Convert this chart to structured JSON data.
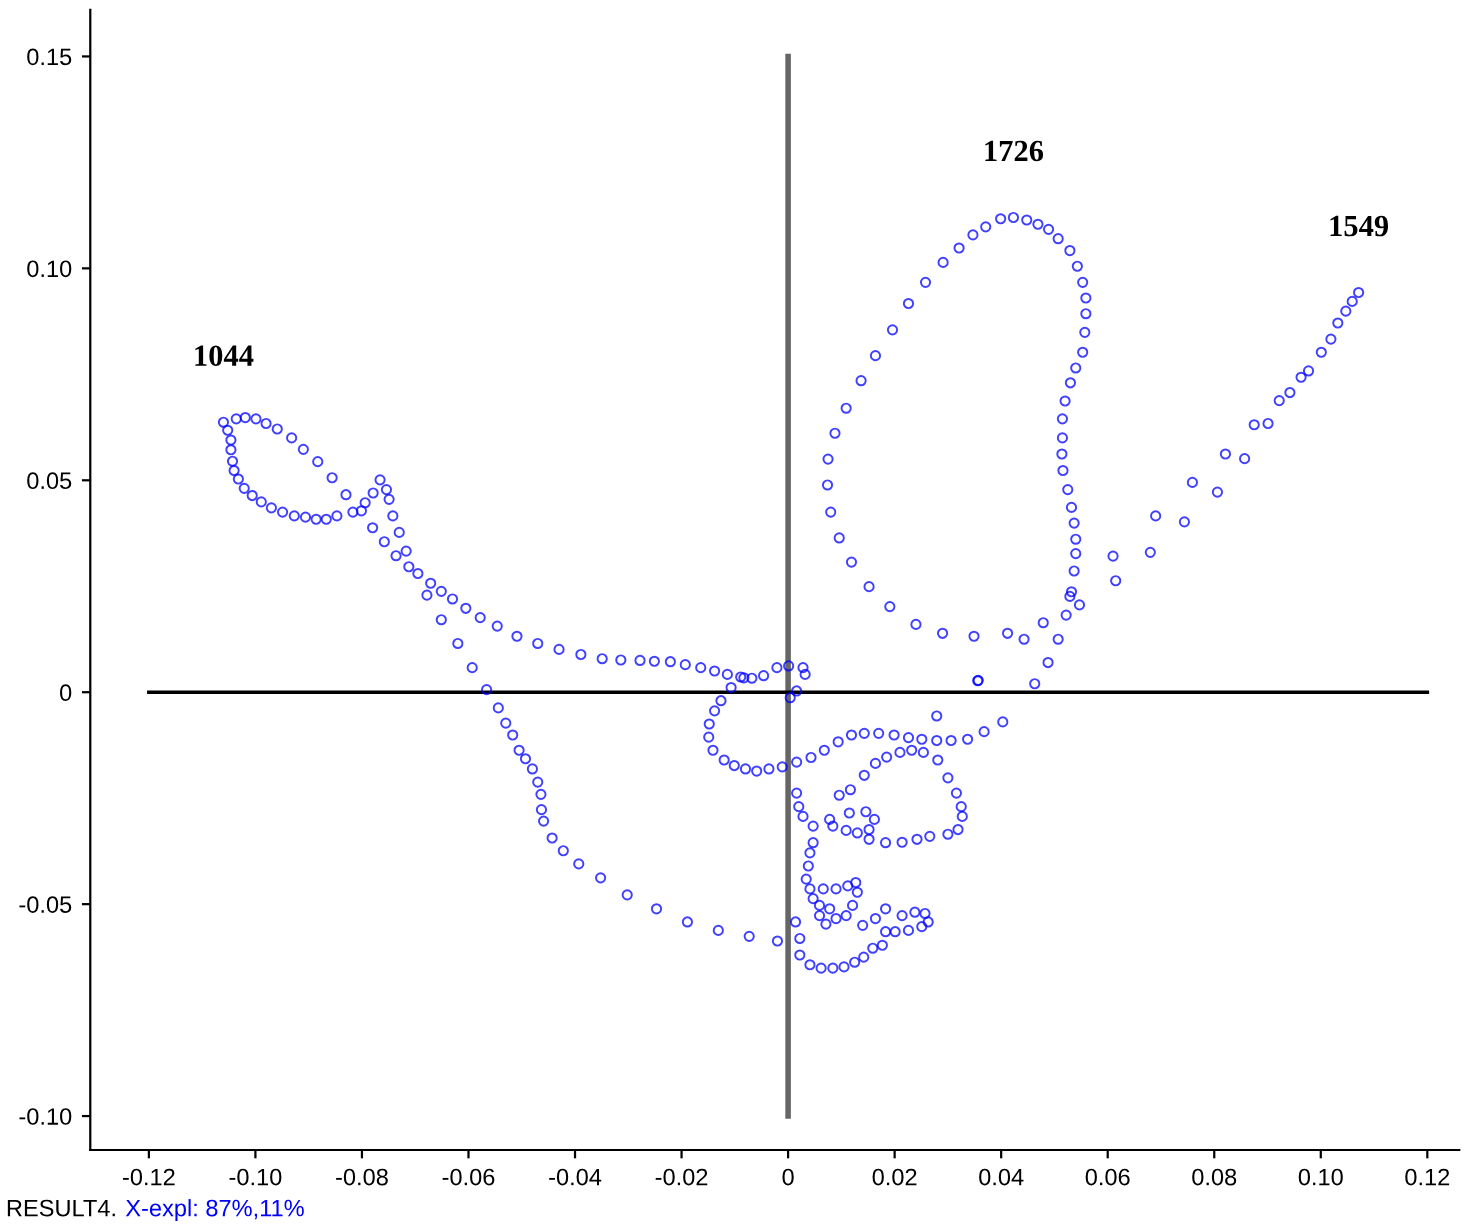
{
  "chart_data": {
    "type": "scatter",
    "marker": "circle",
    "grid": false,
    "legend": false,
    "xlim": [
      -0.131,
      0.126
    ],
    "ylim": [
      -0.108,
      0.161
    ],
    "xticks": [
      {
        "value": -0.12,
        "label": "-0.12"
      },
      {
        "value": -0.1,
        "label": "-0.10"
      },
      {
        "value": -0.08,
        "label": "-0.08"
      },
      {
        "value": -0.06,
        "label": "-0.06"
      },
      {
        "value": -0.04,
        "label": "-0.04"
      },
      {
        "value": -0.02,
        "label": "-0.02"
      },
      {
        "value": 0,
        "label": "0"
      },
      {
        "value": 0.02,
        "label": "0.02"
      },
      {
        "value": 0.04,
        "label": "0.04"
      },
      {
        "value": 0.06,
        "label": "0.06"
      },
      {
        "value": 0.08,
        "label": "0.08"
      },
      {
        "value": 0.1,
        "label": "0.10"
      },
      {
        "value": 0.12,
        "label": "0.12"
      }
    ],
    "yticks": [
      {
        "value": -0.1,
        "label": "-0.10"
      },
      {
        "value": -0.05,
        "label": "-0.05"
      },
      {
        "value": 0,
        "label": "0"
      },
      {
        "value": 0.05,
        "label": "0.05"
      },
      {
        "value": 0.1,
        "label": "0.10"
      },
      {
        "value": 0.15,
        "label": "0.15"
      }
    ],
    "ref_lines": [
      {
        "axis": "x",
        "value": 0,
        "color": "#666666"
      },
      {
        "axis": "y",
        "value": 0,
        "color": "#000000"
      }
    ],
    "annotations": [
      {
        "text": "1044",
        "x": -0.106,
        "y": 0.0637
      },
      {
        "text": "1726",
        "x": 0.0423,
        "y": 0.112
      },
      {
        "text": "1549",
        "x": 0.1071,
        "y": 0.0943
      },
      "RESULT4.",
      "X-expl: 87%,11%"
    ],
    "series": [
      {
        "color": "#0000ff",
        "x": [
          -0.106,
          -0.1036,
          -0.1019,
          -0.0999,
          -0.098,
          -0.0959,
          -0.0932,
          -0.091,
          -0.0883,
          -0.0856,
          -0.083,
          -0.0801,
          -0.0766,
          -0.0779,
          -0.0794,
          -0.0817,
          -0.0847,
          -0.0867,
          -0.0886,
          -0.0906,
          -0.0927,
          -0.0949,
          -0.097,
          -0.0989,
          -0.1006,
          -0.1021,
          -0.1032,
          -0.104,
          -0.1043,
          -0.1046,
          -0.1046,
          -0.1052,
          -0.0754,
          -0.0749,
          -0.0742,
          -0.073,
          -0.0717,
          -0.0712,
          -0.0695,
          -0.0671,
          -0.0651,
          -0.063,
          -0.0605,
          -0.0578,
          -0.0546,
          -0.0509,
          -0.047,
          -0.043,
          -0.0389,
          -0.0349,
          -0.0314,
          -0.0278,
          -0.0251,
          -0.0221,
          -0.0193,
          -0.0164,
          -0.0138,
          -0.0114,
          -0.0089,
          -0.0068,
          -0.0046,
          -0.0021,
          0.0001,
          -0.078,
          -0.0758,
          -0.0736,
          -0.0678,
          -0.0651,
          -0.062,
          -0.0593,
          -0.0566,
          -0.0544,
          -0.053,
          -0.0517,
          -0.0505,
          -0.0493,
          -0.048,
          -0.047,
          -0.0464,
          -0.0463,
          -0.0459,
          -0.0443,
          -0.0422,
          -0.0393,
          -0.0352,
          -0.0302,
          -0.0247,
          -0.0189,
          -0.0131,
          -0.0073,
          -0.002,
          -0.0083,
          -0.0107,
          -0.0126,
          -0.0138,
          -0.0148,
          -0.0149,
          -0.0141,
          -0.012,
          -0.0101,
          -0.008,
          -0.0059,
          -0.0036,
          -0.0011,
          0.0016,
          0.0043,
          0.0068,
          0.0094,
          0.0119,
          0.0143,
          0.017,
          0.0199,
          0.0226,
          0.0251,
          0.0279,
          0.0306,
          0.0337,
          0.0368,
          0.0403,
          0.0279,
          0.0356,
          0.0004,
          0.0016,
          0.0032,
          0.0028,
          0.0254,
          0.0232,
          0.021,
          0.0185,
          0.0164,
          0.0143,
          0.0117,
          0.0096,
          0.0281,
          0.03,
          0.0316,
          0.0325,
          0.0327,
          0.0319,
          0.03,
          0.0266,
          0.0242,
          0.0214,
          0.0183,
          0.0152,
          0.013,
          0.0109,
          0.0084,
          0.0078,
          0.0115,
          0.0146,
          0.0162,
          0.0152,
          0.0016,
          0.002,
          0.0028,
          0.0047,
          0.0047,
          0.0041,
          0.0038,
          0.0034,
          0.0041,
          0.0047,
          0.0059,
          0.0078,
          0.0066,
          0.009,
          0.0112,
          0.0127,
          0.013,
          0.0121,
          0.0109,
          0.009,
          0.0071,
          0.0059,
          0.014,
          0.0164,
          0.0183,
          0.0183,
          0.0177,
          0.0214,
          0.0238,
          0.0257,
          0.0263,
          0.0251,
          0.0226,
          0.0201,
          0.0022,
          0.0041,
          0.0062,
          0.0084,
          0.0105,
          0.0125,
          0.0142,
          0.0159,
          0.0014,
          0.0022,
          0.0399,
          0.0423,
          0.0448,
          0.0469,
          0.0489,
          0.0507,
          0.0529,
          0.0543,
          0.0553,
          0.0559,
          0.0559,
          0.0557,
          0.0553,
          0.054,
          0.053,
          0.052,
          0.0515,
          0.0515,
          0.0514,
          0.0516,
          0.0525,
          0.0532,
          0.0537,
          0.054,
          0.054,
          0.0537,
          0.0532,
          0.0522,
          0.0507,
          0.0488,
          0.0463,
          0.0371,
          0.0347,
          0.0321,
          0.0291,
          0.0258,
          0.0226,
          0.0196,
          0.0164,
          0.0137,
          0.0109,
          0.0088,
          0.0075,
          0.0074,
          0.008,
          0.0096,
          0.0119,
          0.0152,
          0.0191,
          0.024,
          0.029,
          0.0349,
          0.0412,
          0.0443,
          0.0479,
          0.0529,
          0.0547,
          0.1071,
          0.1059,
          0.1047,
          0.1032,
          0.1019,
          0.1001,
          0.0977,
          0.0963,
          0.0942,
          0.0922,
          0.0901,
          0.0875,
          0.0857,
          0.0821,
          0.0806,
          0.0759,
          0.0744,
          0.069,
          0.068,
          0.0615,
          0.061,
          0.0357
        ],
        "values": [
          0.0637,
          0.0645,
          0.0648,
          0.0645,
          0.0634,
          0.0621,
          0.06,
          0.0573,
          0.0544,
          0.0506,
          0.0466,
          0.0428,
          0.0501,
          0.047,
          0.0447,
          0.0425,
          0.0416,
          0.0408,
          0.0408,
          0.0413,
          0.0416,
          0.0425,
          0.0435,
          0.0449,
          0.0464,
          0.0481,
          0.0503,
          0.0523,
          0.0545,
          0.0572,
          0.0595,
          0.0618,
          0.0478,
          0.0455,
          0.0416,
          0.0377,
          0.0333,
          0.0296,
          0.028,
          0.0257,
          0.0238,
          0.022,
          0.0198,
          0.0176,
          0.0156,
          0.0132,
          0.0115,
          0.0101,
          0.0089,
          0.0079,
          0.0076,
          0.0075,
          0.0073,
          0.0072,
          0.0065,
          0.0058,
          0.005,
          0.0042,
          0.0036,
          0.0033,
          0.0039,
          0.0058,
          0.0062,
          0.0388,
          0.0355,
          0.0322,
          0.0229,
          0.0171,
          0.0115,
          0.0058,
          0.0006,
          -0.0037,
          -0.0073,
          -0.0101,
          -0.0137,
          -0.0157,
          -0.0181,
          -0.0212,
          -0.0241,
          -0.0277,
          -0.0304,
          -0.0344,
          -0.0374,
          -0.0405,
          -0.0438,
          -0.0478,
          -0.0511,
          -0.0542,
          -0.0562,
          -0.0576,
          -0.0587,
          0.0034,
          0.0011,
          -0.002,
          -0.0044,
          -0.0075,
          -0.0106,
          -0.0137,
          -0.016,
          -0.0173,
          -0.0181,
          -0.0186,
          -0.0181,
          -0.0176,
          -0.0165,
          -0.0154,
          -0.0137,
          -0.0117,
          -0.0101,
          -0.0097,
          -0.0097,
          -0.0101,
          -0.0107,
          -0.0111,
          -0.0114,
          -0.0114,
          -0.0111,
          -0.0093,
          -0.007,
          -0.0056,
          0.0027,
          -0.0013,
          0.0003,
          0.0042,
          0.0058,
          -0.0142,
          -0.0137,
          -0.0142,
          -0.0153,
          -0.0168,
          -0.0196,
          -0.023,
          -0.0243,
          -0.016,
          -0.0202,
          -0.0238,
          -0.027,
          -0.0293,
          -0.0324,
          -0.0335,
          -0.034,
          -0.0347,
          -0.0354,
          -0.0355,
          -0.0347,
          -0.0332,
          -0.0326,
          -0.0316,
          -0.03,
          -0.0285,
          -0.0282,
          -0.03,
          -0.0324,
          -0.0238,
          -0.027,
          -0.0293,
          -0.0316,
          -0.0355,
          -0.0379,
          -0.041,
          -0.0441,
          -0.0464,
          -0.0487,
          -0.0503,
          -0.0511,
          -0.0464,
          -0.0464,
          -0.0457,
          -0.0449,
          -0.0472,
          -0.0503,
          -0.0527,
          -0.0534,
          -0.0547,
          -0.0527,
          -0.055,
          -0.0534,
          -0.0511,
          -0.0565,
          -0.0597,
          -0.0527,
          -0.0519,
          -0.0522,
          -0.0542,
          -0.0553,
          -0.0562,
          -0.0565,
          -0.062,
          -0.0643,
          -0.0651,
          -0.0651,
          -0.0648,
          -0.0637,
          -0.0625,
          -0.0604,
          -0.0542,
          -0.0581,
          0.1117,
          0.112,
          0.1114,
          0.1104,
          0.1092,
          0.107,
          0.1042,
          0.1005,
          0.0967,
          0.093,
          0.0893,
          0.0849,
          0.0802,
          0.0765,
          0.073,
          0.0687,
          0.0645,
          0.06,
          0.0562,
          0.0523,
          0.0478,
          0.0436,
          0.0399,
          0.0361,
          0.0327,
          0.0286,
          0.0237,
          0.0182,
          0.0125,
          0.007,
          0.002,
          0.1098,
          0.1079,
          0.1048,
          0.1014,
          0.0967,
          0.0917,
          0.0855,
          0.0794,
          0.0735,
          0.067,
          0.0611,
          0.055,
          0.0489,
          0.0425,
          0.0364,
          0.0307,
          0.0249,
          0.0202,
          0.016,
          0.0139,
          0.0132,
          0.0139,
          0.0125,
          0.0164,
          0.0226,
          0.0206,
          0.0943,
          0.0922,
          0.0899,
          0.0871,
          0.0833,
          0.0802,
          0.0758,
          0.0743,
          0.0707,
          0.0688,
          0.0634,
          0.0631,
          0.0551,
          0.0562,
          0.0472,
          0.0495,
          0.0402,
          0.0416,
          0.033,
          0.0263,
          0.0321,
          0.0028
        ]
      }
    ]
  }
}
